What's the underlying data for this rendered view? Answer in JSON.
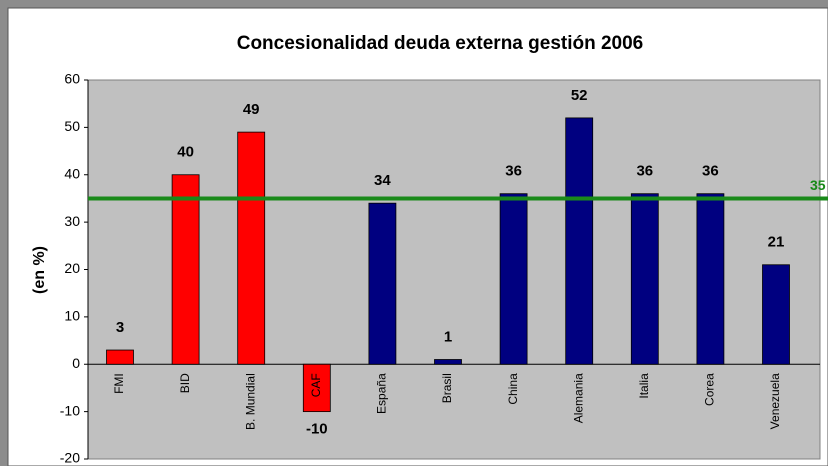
{
  "chart_data": {
    "type": "bar",
    "title": "Concesionalidad deuda externa gestión 2006",
    "y_label": "(en %)",
    "categories": [
      "FMI",
      "BID",
      "B. Mundial",
      "CAF",
      "España",
      "Brasil",
      "China",
      "Alemania",
      "Italia",
      "Corea",
      "Venezuela"
    ],
    "values": [
      3,
      40,
      49,
      -10,
      34,
      1,
      36,
      52,
      36,
      36,
      21
    ],
    "colors": [
      "#ff0000",
      "#ff0000",
      "#ff0000",
      "#ff0000",
      "#000080",
      "#000080",
      "#000080",
      "#000080",
      "#000080",
      "#000080",
      "#000080"
    ],
    "ylim": [
      -20,
      60
    ],
    "yticks": [
      -20,
      -10,
      0,
      10,
      20,
      30,
      40,
      50,
      60
    ],
    "reference_line": 35,
    "reference_color": "#1a8a1a"
  }
}
